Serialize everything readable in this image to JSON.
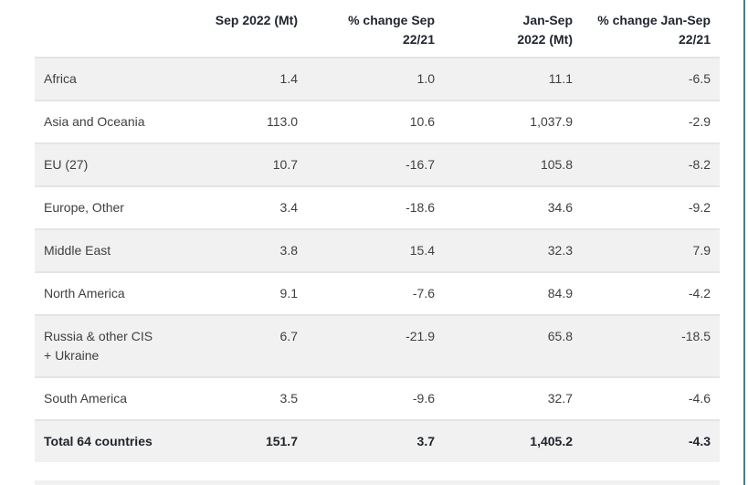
{
  "scrollbar": {
    "color": "#4e7a8c"
  },
  "table": {
    "header": {
      "region": {
        "line1": ""
      },
      "sep2022": {
        "line1": "Sep 2022 (Mt)",
        "line2": ""
      },
      "pct_sep": {
        "line1": "% change Sep",
        "line2": "22/21"
      },
      "jan_sep": {
        "line1": "Jan-Sep",
        "line2": "2022 (Mt)"
      },
      "pct_jan_sep": {
        "line1": "% change Jan-Sep",
        "line2": "22/21"
      }
    },
    "rows": [
      {
        "region1": "Africa",
        "v1": "1.4",
        "v2": "1.0",
        "v3": "11.1",
        "v4": "-6.5"
      },
      {
        "region1": "Asia and Oceania",
        "v1": "113.0",
        "v2": "10.6",
        "v3": "1,037.9",
        "v4": "-2.9"
      },
      {
        "region1": "EU (27)",
        "v1": "10.7",
        "v2": "-16.7",
        "v3": "105.8",
        "v4": "-8.2"
      },
      {
        "region1": "Europe, Other",
        "v1": "3.4",
        "v2": "-18.6",
        "v3": "34.6",
        "v4": "-9.2"
      },
      {
        "region1": "Middle East",
        "v1": "3.8",
        "v2": "15.4",
        "v3": "32.3",
        "v4": "7.9"
      },
      {
        "region1": "North America",
        "v1": "9.1",
        "v2": "-7.6",
        "v3": "84.9",
        "v4": "-4.2"
      },
      {
        "region1": "Russia & other CIS",
        "region2": "+ Ukraine",
        "v1": "6.7",
        "v2": "-21.9",
        "v3": "65.8",
        "v4": "-18.5"
      },
      {
        "region1": "South America",
        "v1": "3.5",
        "v2": "-9.6",
        "v3": "32.7",
        "v4": "-4.6"
      },
      {
        "region1": "Total 64 countries",
        "v1": "151.7",
        "v2": "3.7",
        "v3": "1,405.2",
        "v4": "-4.3"
      }
    ]
  },
  "chart_data": {
    "type": "table",
    "columns": [
      "",
      "Sep 2022 (Mt)",
      "% change Sep 22/21",
      "Jan-Sep 2022 (Mt)",
      "% change Jan-Sep 22/21"
    ],
    "rows": [
      [
        "Africa",
        1.4,
        1.0,
        11.1,
        -6.5
      ],
      [
        "Asia and Oceania",
        113.0,
        10.6,
        1037.9,
        -2.9
      ],
      [
        "EU (27)",
        10.7,
        -16.7,
        105.8,
        -8.2
      ],
      [
        "Europe, Other",
        3.4,
        -18.6,
        34.6,
        -9.2
      ],
      [
        "Middle East",
        3.8,
        15.4,
        32.3,
        7.9
      ],
      [
        "North America",
        9.1,
        -7.6,
        84.9,
        -4.2
      ],
      [
        "Russia & other CIS + Ukraine",
        6.7,
        -21.9,
        65.8,
        -18.5
      ],
      [
        "South America",
        3.5,
        -9.6,
        32.7,
        -4.6
      ],
      [
        "Total 64 countries",
        151.7,
        3.7,
        1405.2,
        -4.3
      ]
    ],
    "title": "",
    "notes": "shaded rows: Africa, EU (27), Middle East, Russia & other CIS + Ukraine, Total 64 countries; Total row bold"
  }
}
